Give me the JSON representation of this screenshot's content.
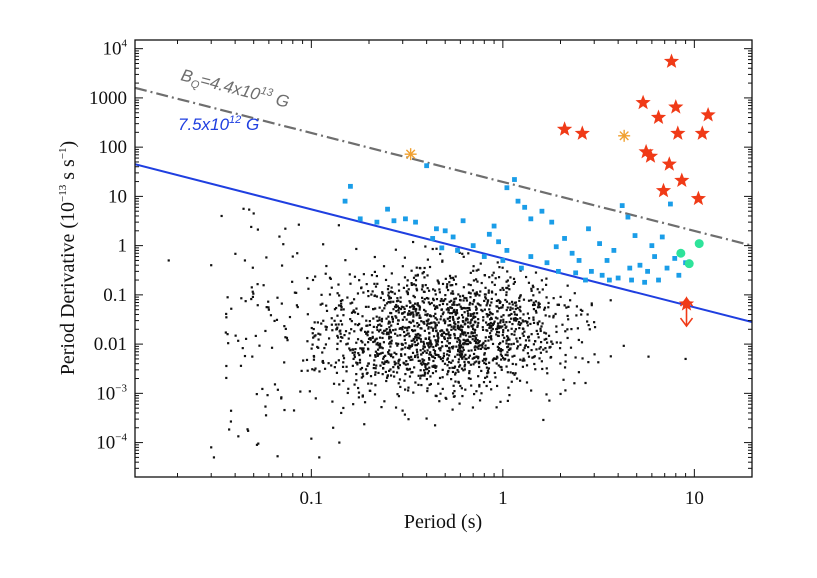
{
  "chart_data": {
    "type": "scatter",
    "title": "",
    "xlabel": "Period (s)",
    "ylabel": "Period Derivative (10",
    "ylabel_exp": "−13",
    "ylabel_tail": " s s",
    "ylabel_tail_exp": "−1",
    "ylabel_close": ")",
    "x_scale": "log",
    "y_scale": "log",
    "xlim": [
      0.012,
      20
    ],
    "ylim": [
      2e-05,
      15000
    ],
    "x_ticks": [
      {
        "value": 0.1,
        "label": "0.1"
      },
      {
        "value": 1,
        "label": "1"
      },
      {
        "value": 10,
        "label": "10"
      }
    ],
    "y_ticks": [
      {
        "value": 10000,
        "base": "10",
        "exp": "4"
      },
      {
        "value": 1000,
        "base": "1000",
        "exp": ""
      },
      {
        "value": 100,
        "base": "100",
        "exp": ""
      },
      {
        "value": 10,
        "base": "10",
        "exp": ""
      },
      {
        "value": 1,
        "base": "1",
        "exp": ""
      },
      {
        "value": 0.1,
        "base": "0.1",
        "exp": ""
      },
      {
        "value": 0.01,
        "base": "0.01",
        "exp": ""
      },
      {
        "value": 0.001,
        "base": "10",
        "exp": "−3"
      },
      {
        "value": 0.0001,
        "base": "10",
        "exp": "−4"
      }
    ],
    "grid": false,
    "lines": [
      {
        "label_main": "B",
        "label_sub": "Q",
        "label_rest": "=4.4x10",
        "label_exp": "13",
        "label_unit": " G",
        "color": "#6e6e6e",
        "dash": "dashdot",
        "points": [
          [
            0.012,
            1600
          ],
          [
            20,
            1.0
          ]
        ]
      },
      {
        "label_main": "",
        "label_sub": "",
        "label_rest": "7.5x10",
        "label_exp": "12",
        "label_unit": " G",
        "color": "#1f3fe0",
        "dash": "solid",
        "points": [
          [
            0.012,
            45
          ],
          [
            20,
            0.028
          ]
        ]
      }
    ],
    "series": [
      {
        "marker": "star",
        "color": "#f03a17",
        "points": [
          [
            7.6,
            5500
          ],
          [
            5.4,
            800
          ],
          [
            8.0,
            650
          ],
          [
            11.8,
            450
          ],
          [
            6.5,
            400
          ],
          [
            2.1,
            230
          ],
          [
            2.6,
            190
          ],
          [
            8.2,
            190
          ],
          [
            11.0,
            190
          ],
          [
            5.6,
            80
          ],
          [
            5.9,
            65
          ],
          [
            7.4,
            45
          ],
          [
            8.6,
            21
          ],
          [
            6.9,
            13
          ],
          [
            10.5,
            9
          ],
          [
            9.1,
            0.065
          ]
        ]
      },
      {
        "marker": "asterisk",
        "color": "#f0a030",
        "points": [
          [
            0.33,
            72
          ],
          [
            4.3,
            170
          ]
        ]
      },
      {
        "marker": "circle",
        "color": "#2ee39a",
        "points": [
          [
            10.6,
            1.1
          ],
          [
            8.5,
            0.7
          ],
          [
            9.4,
            0.43
          ]
        ]
      },
      {
        "marker": "square",
        "color": "#1a9de8",
        "points": [
          [
            0.16,
            16
          ],
          [
            0.15,
            8
          ],
          [
            0.18,
            3.5
          ],
          [
            0.22,
            3.0
          ],
          [
            0.27,
            3.2
          ],
          [
            0.31,
            3.5
          ],
          [
            0.35,
            3.0
          ],
          [
            0.25,
            5.5
          ],
          [
            0.4,
            42
          ],
          [
            0.45,
            2.2
          ],
          [
            0.5,
            2.0
          ],
          [
            0.43,
            1.4
          ],
          [
            0.48,
            0.9
          ],
          [
            0.55,
            1.5
          ],
          [
            0.62,
            3.2
          ],
          [
            0.7,
            1.0
          ],
          [
            0.85,
            1.7
          ],
          [
            0.95,
            1.2
          ],
          [
            1.05,
            0.8
          ],
          [
            1.15,
            22
          ],
          [
            1.2,
            8
          ],
          [
            1.05,
            15
          ],
          [
            1.3,
            6
          ],
          [
            1.4,
            3.5
          ],
          [
            1.6,
            5
          ],
          [
            1.8,
            3
          ],
          [
            1.9,
            0.95
          ],
          [
            2.1,
            1.4
          ],
          [
            2.3,
            0.7
          ],
          [
            2.5,
            0.5
          ],
          [
            2.8,
            2.2
          ],
          [
            3.2,
            1.1
          ],
          [
            3.5,
            0.5
          ],
          [
            3.8,
            0.8
          ],
          [
            4.2,
            6.5
          ],
          [
            4.5,
            3.8
          ],
          [
            4.9,
            1.6
          ],
          [
            5.2,
            0.4
          ],
          [
            5.7,
            0.3
          ],
          [
            6.2,
            0.6
          ],
          [
            6.8,
            1.5
          ],
          [
            7.5,
            7
          ],
          [
            7.9,
            0.55
          ],
          [
            8.3,
            0.25
          ],
          [
            0.8,
            0.6
          ],
          [
            0.9,
            2.5
          ],
          [
            1.4,
            0.6
          ],
          [
            1.7,
            0.45
          ],
          [
            2.4,
            0.28
          ],
          [
            2.9,
            0.3
          ],
          [
            3.3,
            0.25
          ],
          [
            4.0,
            0.22
          ],
          [
            4.7,
            0.2
          ],
          [
            5.5,
            0.18
          ],
          [
            6.5,
            0.2
          ],
          [
            7.2,
            0.35
          ],
          [
            0.58,
            0.8
          ],
          [
            1.0,
            0.5
          ],
          [
            1.25,
            0.35
          ],
          [
            1.95,
            0.3
          ],
          [
            2.7,
            0.2
          ],
          [
            3.6,
            0.2
          ],
          [
            4.6,
            0.35
          ],
          [
            6.0,
            1.0
          ],
          [
            9.0,
            0.45
          ]
        ]
      },
      {
        "marker": "dot",
        "color": "#111111",
        "generated_count": 1700,
        "points": [
          [
            0.018,
            0.5
          ],
          [
            0.03,
            8e-05
          ],
          [
            0.031,
            5e-05
          ],
          [
            0.03,
            0.4
          ],
          [
            0.034,
            4
          ],
          [
            0.036,
            0.035
          ],
          [
            0.045,
            0.5
          ],
          [
            0.05,
            4.5
          ],
          [
            0.052,
            9e-05
          ],
          [
            0.06,
            0.05
          ],
          [
            0.08,
            0.6
          ],
          [
            0.1,
            0.00012
          ],
          [
            0.11,
            5e-05
          ],
          [
            0.13,
            0.0002
          ],
          [
            0.14,
            0.0001
          ],
          [
            9.0,
            0.005
          ]
        ]
      }
    ]
  }
}
